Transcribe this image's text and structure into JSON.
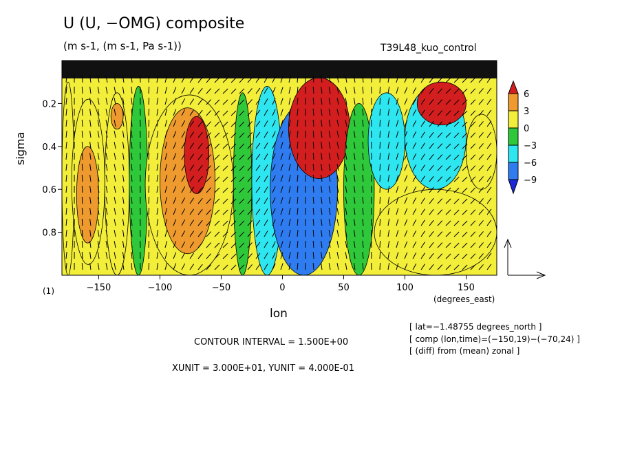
{
  "header": {
    "title": "U (U, −OMG) composite",
    "units": "(m s-1, (m s-1, Pa s-1))",
    "run_name": "T39L48_kuo_control"
  },
  "chart_data": {
    "type": "heatmap",
    "title": "U (U, −OMG) composite",
    "xlabel": "lon",
    "ylabel": "sigma",
    "x_units": "(degrees_east)",
    "figure_number": "(1)",
    "xlim": [
      -180,
      175
    ],
    "ylim": [
      1.0,
      0.0
    ],
    "x_ticks": [
      -150,
      -100,
      -50,
      0,
      50,
      100,
      150
    ],
    "x_tick_labels": [
      "−150",
      "−100",
      "−50",
      "0",
      "50",
      "100",
      "150"
    ],
    "y_ticks": [
      0.2,
      0.4,
      0.6,
      0.8
    ],
    "y_tick_labels": [
      "0.2",
      "0.4",
      "0.6",
      "0.8"
    ],
    "colorbar": {
      "levels": [
        6,
        3,
        0,
        -3,
        -6,
        -9
      ],
      "labels": [
        "6",
        "3",
        "0",
        "−3",
        "−6",
        "−9"
      ],
      "colors": [
        "#d21e1e",
        "#ee9a2e",
        "#f2ee3a",
        "#2ec83a",
        "#2ee6f0",
        "#2f7cf0",
        "#1a2ad8"
      ]
    },
    "contour_interval": "CONTOUR INTERVAL = 1.500E+00",
    "vector_units": "XUNIT = 3.000E+01, YUNIT = 4.000E-01",
    "annotations": [
      "[ lat=−1.48755 degrees_north ]",
      "[ comp (lon,time)=(−150,19)−(−70,24) ]",
      "[ (diff) from (mean) zonal ]"
    ],
    "regions": [
      {
        "lon": [
          -180,
          -170
        ],
        "sigma": [
          0.1,
          1.0
        ],
        "value": 1.5
      },
      {
        "lon": [
          -172,
          -145
        ],
        "sigma": [
          0.18,
          0.95
        ],
        "value": 1.5
      },
      {
        "lon": [
          -168,
          -150
        ],
        "sigma": [
          0.4,
          0.85
        ],
        "value": 4.5
      },
      {
        "lon": [
          -145,
          -125
        ],
        "sigma": [
          0.15,
          1.0
        ],
        "value": 1.5
      },
      {
        "lon": [
          -140,
          -130
        ],
        "sigma": [
          0.2,
          0.32
        ],
        "value": 4.5
      },
      {
        "lon": [
          -125,
          -110
        ],
        "sigma": [
          0.12,
          1.0
        ],
        "value": -1.5
      },
      {
        "lon": [
          -112,
          -40
        ],
        "sigma": [
          0.16,
          1.0
        ],
        "value": 1.5
      },
      {
        "lon": [
          -100,
          -55
        ],
        "sigma": [
          0.22,
          0.9
        ],
        "value": 4.5
      },
      {
        "lon": [
          -80,
          -60
        ],
        "sigma": [
          0.26,
          0.62
        ],
        "value": 7.5
      },
      {
        "lon": [
          -40,
          -25
        ],
        "sigma": [
          0.15,
          1.0
        ],
        "value": -1.5
      },
      {
        "lon": [
          -25,
          0
        ],
        "sigma": [
          0.12,
          1.0
        ],
        "value": -4.5
      },
      {
        "lon": [
          -10,
          45
        ],
        "sigma": [
          0.2,
          1.0
        ],
        "value": -7.5
      },
      {
        "lon": [
          5,
          55
        ],
        "sigma": [
          0.08,
          0.55
        ],
        "value": 7.5
      },
      {
        "lon": [
          50,
          75
        ],
        "sigma": [
          0.2,
          1.0
        ],
        "value": -1.5
      },
      {
        "lon": [
          70,
          100
        ],
        "sigma": [
          0.15,
          0.6
        ],
        "value": -4.5
      },
      {
        "lon": [
          75,
          175
        ],
        "sigma": [
          0.6,
          1.0
        ],
        "value": 1.5
      },
      {
        "lon": [
          100,
          150
        ],
        "sigma": [
          0.12,
          0.6
        ],
        "value": -4.5
      },
      {
        "lon": [
          110,
          150
        ],
        "sigma": [
          0.1,
          0.3
        ],
        "value": 7.5
      },
      {
        "lon": [
          150,
          175
        ],
        "sigma": [
          0.25,
          0.6
        ],
        "value": 1.5
      }
    ]
  }
}
